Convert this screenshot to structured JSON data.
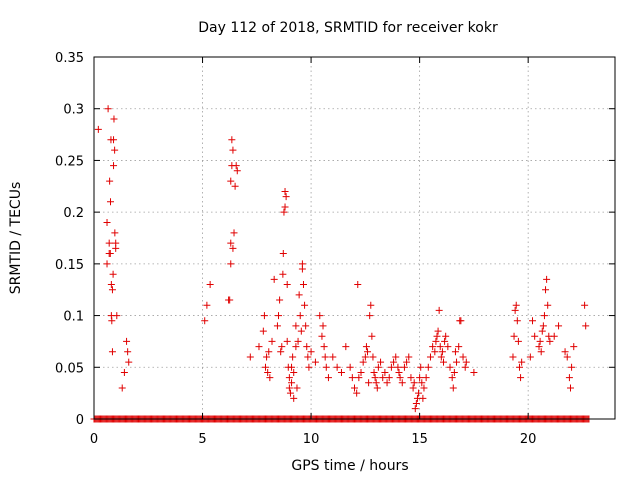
{
  "chart_data": {
    "type": "scatter",
    "title": "Day 112 of 2018, SRMTID for receiver kokr",
    "xlabel": "GPS time / hours",
    "ylabel": "SRMTID / TECUs",
    "xlim": [
      0,
      24
    ],
    "ylim": [
      0,
      0.35
    ],
    "xticks": [
      0,
      5,
      10,
      15,
      20
    ],
    "xtick_labels": [
      "0",
      "5",
      "10",
      "15",
      "20"
    ],
    "yticks": [
      0,
      0.05,
      0.1,
      0.15,
      0.2,
      0.25,
      0.3,
      0.35
    ],
    "ytick_labels": [
      "0",
      "0.05",
      "0.1",
      "0.15",
      "0.2",
      "0.25",
      "0.3",
      "0.35"
    ],
    "grid": true,
    "marker": "+",
    "color": "#e00000",
    "series": [
      {
        "name": "SRMTID",
        "points": [
          [
            0.2,
            0.28
          ],
          [
            0.6,
            0.15
          ],
          [
            0.6,
            0.19
          ],
          [
            0.65,
            0.3
          ],
          [
            0.7,
            0.17
          ],
          [
            0.7,
            0.16
          ],
          [
            0.72,
            0.23
          ],
          [
            0.75,
            0.16
          ],
          [
            0.76,
            0.21
          ],
          [
            0.78,
            0.27
          ],
          [
            0.8,
            0.13
          ],
          [
            0.8,
            0.1
          ],
          [
            0.82,
            0.095
          ],
          [
            0.85,
            0.065
          ],
          [
            0.85,
            0.125
          ],
          [
            0.88,
            0.14
          ],
          [
            0.9,
            0.27
          ],
          [
            0.9,
            0.245
          ],
          [
            0.92,
            0.29
          ],
          [
            0.95,
            0.26
          ],
          [
            0.96,
            0.18
          ],
          [
            1.0,
            0.17
          ],
          [
            1.0,
            0.165
          ],
          [
            1.05,
            0.1
          ],
          [
            1.3,
            0.03
          ],
          [
            1.4,
            0.045
          ],
          [
            1.5,
            0.075
          ],
          [
            1.55,
            0.065
          ],
          [
            1.6,
            0.055
          ],
          [
            5.1,
            0.095
          ],
          [
            5.2,
            0.11
          ],
          [
            5.35,
            0.13
          ],
          [
            6.2,
            0.115
          ],
          [
            6.25,
            0.115
          ],
          [
            6.3,
            0.15
          ],
          [
            6.3,
            0.17
          ],
          [
            6.3,
            0.23
          ],
          [
            6.35,
            0.245
          ],
          [
            6.35,
            0.27
          ],
          [
            6.4,
            0.26
          ],
          [
            6.4,
            0.165
          ],
          [
            6.45,
            0.18
          ],
          [
            6.5,
            0.225
          ],
          [
            6.55,
            0.245
          ],
          [
            6.6,
            0.24
          ],
          [
            7.2,
            0.06
          ],
          [
            7.6,
            0.07
          ],
          [
            7.8,
            0.085
          ],
          [
            7.85,
            0.1
          ],
          [
            7.9,
            0.05
          ],
          [
            7.95,
            0.06
          ],
          [
            8.0,
            0.045
          ],
          [
            8.05,
            0.065
          ],
          [
            8.1,
            0.04
          ],
          [
            8.2,
            0.075
          ],
          [
            8.3,
            0.135
          ],
          [
            8.45,
            0.09
          ],
          [
            8.5,
            0.1
          ],
          [
            8.55,
            0.115
          ],
          [
            8.6,
            0.065
          ],
          [
            8.65,
            0.07
          ],
          [
            8.7,
            0.14
          ],
          [
            8.72,
            0.16
          ],
          [
            8.75,
            0.2
          ],
          [
            8.8,
            0.22
          ],
          [
            8.8,
            0.205
          ],
          [
            8.85,
            0.215
          ],
          [
            8.9,
            0.13
          ],
          [
            8.9,
            0.075
          ],
          [
            8.95,
            0.05
          ],
          [
            9.0,
            0.04
          ],
          [
            9.0,
            0.03
          ],
          [
            9.05,
            0.025
          ],
          [
            9.1,
            0.035
          ],
          [
            9.1,
            0.05
          ],
          [
            9.15,
            0.06
          ],
          [
            9.2,
            0.045
          ],
          [
            9.2,
            0.02
          ],
          [
            9.3,
            0.07
          ],
          [
            9.3,
            0.09
          ],
          [
            9.35,
            0.03
          ],
          [
            9.4,
            0.075
          ],
          [
            9.45,
            0.12
          ],
          [
            9.5,
            0.1
          ],
          [
            9.55,
            0.085
          ],
          [
            9.6,
            0.15
          ],
          [
            9.6,
            0.145
          ],
          [
            9.65,
            0.13
          ],
          [
            9.7,
            0.11
          ],
          [
            9.75,
            0.09
          ],
          [
            9.8,
            0.07
          ],
          [
            9.85,
            0.06
          ],
          [
            9.9,
            0.05
          ],
          [
            10.0,
            0.065
          ],
          [
            10.2,
            0.055
          ],
          [
            10.4,
            0.1
          ],
          [
            10.5,
            0.08
          ],
          [
            10.55,
            0.09
          ],
          [
            10.6,
            0.07
          ],
          [
            10.65,
            0.06
          ],
          [
            10.7,
            0.05
          ],
          [
            10.8,
            0.04
          ],
          [
            11.0,
            0.06
          ],
          [
            11.2,
            0.05
          ],
          [
            11.4,
            0.045
          ],
          [
            11.6,
            0.07
          ],
          [
            11.8,
            0.05
          ],
          [
            11.9,
            0.04
          ],
          [
            12.0,
            0.03
          ],
          [
            12.1,
            0.025
          ],
          [
            12.15,
            0.13
          ],
          [
            12.2,
            0.04
          ],
          [
            12.3,
            0.045
          ],
          [
            12.4,
            0.055
          ],
          [
            12.5,
            0.06
          ],
          [
            12.55,
            0.07
          ],
          [
            12.6,
            0.065
          ],
          [
            12.65,
            0.035
          ],
          [
            12.7,
            0.1
          ],
          [
            12.75,
            0.11
          ],
          [
            12.8,
            0.08
          ],
          [
            12.85,
            0.06
          ],
          [
            12.9,
            0.045
          ],
          [
            12.95,
            0.04
          ],
          [
            13.0,
            0.035
          ],
          [
            13.05,
            0.03
          ],
          [
            13.1,
            0.05
          ],
          [
            13.2,
            0.055
          ],
          [
            13.3,
            0.04
          ],
          [
            13.4,
            0.045
          ],
          [
            13.5,
            0.035
          ],
          [
            13.6,
            0.04
          ],
          [
            13.7,
            0.05
          ],
          [
            13.8,
            0.055
          ],
          [
            13.9,
            0.06
          ],
          [
            14.0,
            0.05
          ],
          [
            14.05,
            0.045
          ],
          [
            14.1,
            0.04
          ],
          [
            14.2,
            0.035
          ],
          [
            14.3,
            0.05
          ],
          [
            14.4,
            0.055
          ],
          [
            14.5,
            0.06
          ],
          [
            14.6,
            0.04
          ],
          [
            14.7,
            0.03
          ],
          [
            14.75,
            0.035
          ],
          [
            14.8,
            0.01
          ],
          [
            14.85,
            0.015
          ],
          [
            14.9,
            0.02
          ],
          [
            14.95,
            0.025
          ],
          [
            15.0,
            0.04
          ],
          [
            15.05,
            0.05
          ],
          [
            15.1,
            0.035
          ],
          [
            15.15,
            0.02
          ],
          [
            15.2,
            0.03
          ],
          [
            15.3,
            0.04
          ],
          [
            15.4,
            0.05
          ],
          [
            15.5,
            0.06
          ],
          [
            15.6,
            0.07
          ],
          [
            15.7,
            0.065
          ],
          [
            15.75,
            0.075
          ],
          [
            15.8,
            0.08
          ],
          [
            15.85,
            0.085
          ],
          [
            15.9,
            0.105
          ],
          [
            15.95,
            0.07
          ],
          [
            16.0,
            0.06
          ],
          [
            16.05,
            0.065
          ],
          [
            16.1,
            0.055
          ],
          [
            16.15,
            0.075
          ],
          [
            16.2,
            0.08
          ],
          [
            16.3,
            0.07
          ],
          [
            16.4,
            0.05
          ],
          [
            16.5,
            0.04
          ],
          [
            16.55,
            0.03
          ],
          [
            16.6,
            0.045
          ],
          [
            16.65,
            0.065
          ],
          [
            16.7,
            0.055
          ],
          [
            16.8,
            0.07
          ],
          [
            16.85,
            0.095
          ],
          [
            16.9,
            0.095
          ],
          [
            17.0,
            0.06
          ],
          [
            17.1,
            0.05
          ],
          [
            17.15,
            0.055
          ],
          [
            17.5,
            0.045
          ],
          [
            19.3,
            0.06
          ],
          [
            19.35,
            0.08
          ],
          [
            19.4,
            0.105
          ],
          [
            19.45,
            0.11
          ],
          [
            19.5,
            0.095
          ],
          [
            19.55,
            0.075
          ],
          [
            19.6,
            0.05
          ],
          [
            19.65,
            0.04
          ],
          [
            19.7,
            0.055
          ],
          [
            20.1,
            0.06
          ],
          [
            20.2,
            0.095
          ],
          [
            20.3,
            0.08
          ],
          [
            20.5,
            0.07
          ],
          [
            20.55,
            0.075
          ],
          [
            20.6,
            0.065
          ],
          [
            20.65,
            0.085
          ],
          [
            20.7,
            0.09
          ],
          [
            20.75,
            0.1
          ],
          [
            20.8,
            0.125
          ],
          [
            20.85,
            0.135
          ],
          [
            20.9,
            0.11
          ],
          [
            20.95,
            0.08
          ],
          [
            21.0,
            0.075
          ],
          [
            21.2,
            0.08
          ],
          [
            21.4,
            0.09
          ],
          [
            21.7,
            0.065
          ],
          [
            21.8,
            0.06
          ],
          [
            21.9,
            0.04
          ],
          [
            21.95,
            0.03
          ],
          [
            22.0,
            0.05
          ],
          [
            22.1,
            0.07
          ],
          [
            22.6,
            0.11
          ],
          [
            22.65,
            0.09
          ]
        ],
        "zero_band_x": [
          0,
          22.8
        ]
      }
    ]
  }
}
